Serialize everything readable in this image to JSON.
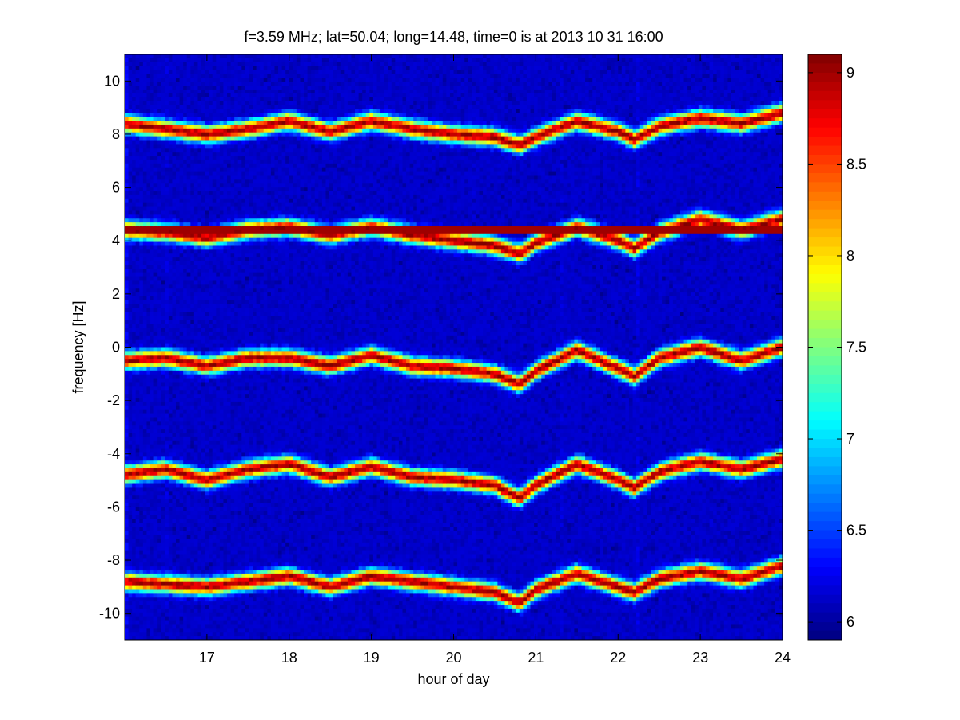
{
  "chart_data": {
    "type": "heatmap",
    "title": "f=3.59 MHz;  lat=50.04; long=14.48, time=0 is at 2013 10 31 16:00",
    "xlabel": "hour of day",
    "ylabel": "frequency [Hz]",
    "xlim": [
      16,
      24
    ],
    "ylim": [
      -11,
      11
    ],
    "xticks": [
      17,
      18,
      19,
      20,
      21,
      22,
      23,
      24
    ],
    "yticks": [
      -10,
      -8,
      -6,
      -4,
      -2,
      0,
      2,
      4,
      6,
      8,
      10
    ],
    "colorbar": {
      "clim": [
        5.9,
        9.1
      ],
      "ticks": [
        6,
        6.5,
        7,
        7.5,
        8,
        8.5,
        9
      ],
      "colormap": "jet"
    },
    "background_value": 6.0,
    "constant_line": {
      "y": 4.4,
      "value": 9.0
    },
    "traces": [
      {
        "name": "",
        "x": [
          16.0,
          16.5,
          17.0,
          17.5,
          18.0,
          18.5,
          19.0,
          19.5,
          20.0,
          20.5,
          20.8,
          21.0,
          21.5,
          22.0,
          22.2,
          22.5,
          23.0,
          23.5,
          24.0
        ],
        "y": [
          8.4,
          8.2,
          8.0,
          8.2,
          8.5,
          8.1,
          8.5,
          8.2,
          8.0,
          7.9,
          7.6,
          7.9,
          8.5,
          8.1,
          7.8,
          8.3,
          8.6,
          8.4,
          8.8
        ]
      },
      {
        "name": "",
        "x": [
          16.0,
          16.5,
          17.0,
          17.5,
          18.0,
          18.5,
          19.0,
          19.5,
          20.0,
          20.5,
          20.8,
          21.0,
          21.5,
          22.0,
          22.2,
          22.5,
          23.0,
          23.5,
          24.0
        ],
        "y": [
          4.4,
          4.3,
          4.1,
          4.4,
          4.5,
          4.2,
          4.5,
          4.2,
          4.0,
          3.8,
          3.5,
          3.9,
          4.5,
          4.0,
          3.7,
          4.3,
          4.8,
          4.4,
          4.8
        ]
      },
      {
        "name": "",
        "x": [
          16.0,
          16.5,
          17.0,
          17.5,
          18.0,
          18.5,
          19.0,
          19.5,
          20.0,
          20.5,
          20.8,
          21.0,
          21.5,
          22.0,
          22.2,
          22.5,
          23.0,
          23.5,
          24.0
        ],
        "y": [
          -0.5,
          -0.4,
          -0.7,
          -0.4,
          -0.4,
          -0.7,
          -0.3,
          -0.7,
          -0.8,
          -1.0,
          -1.4,
          -0.9,
          -0.1,
          -0.8,
          -1.1,
          -0.4,
          0.0,
          -0.5,
          0.0
        ]
      },
      {
        "name": "",
        "x": [
          16.0,
          16.5,
          17.0,
          17.5,
          18.0,
          18.5,
          19.0,
          19.5,
          20.0,
          20.5,
          20.8,
          21.0,
          21.5,
          22.0,
          22.2,
          22.5,
          23.0,
          23.5,
          24.0
        ],
        "y": [
          -4.8,
          -4.6,
          -5.0,
          -4.6,
          -4.4,
          -4.9,
          -4.5,
          -4.9,
          -5.0,
          -5.2,
          -5.7,
          -5.2,
          -4.4,
          -5.0,
          -5.3,
          -4.7,
          -4.3,
          -4.6,
          -4.2
        ]
      },
      {
        "name": "",
        "x": [
          16.0,
          16.5,
          17.0,
          17.5,
          18.0,
          18.5,
          19.0,
          19.5,
          20.0,
          20.5,
          20.8,
          21.0,
          21.5,
          22.0,
          22.2,
          22.5,
          23.0,
          23.5,
          24.0
        ],
        "y": [
          -8.8,
          -8.9,
          -9.0,
          -8.8,
          -8.6,
          -9.0,
          -8.6,
          -8.8,
          -9.0,
          -9.2,
          -9.6,
          -9.1,
          -8.5,
          -9.0,
          -9.2,
          -8.7,
          -8.4,
          -8.7,
          -8.2
        ]
      }
    ]
  }
}
